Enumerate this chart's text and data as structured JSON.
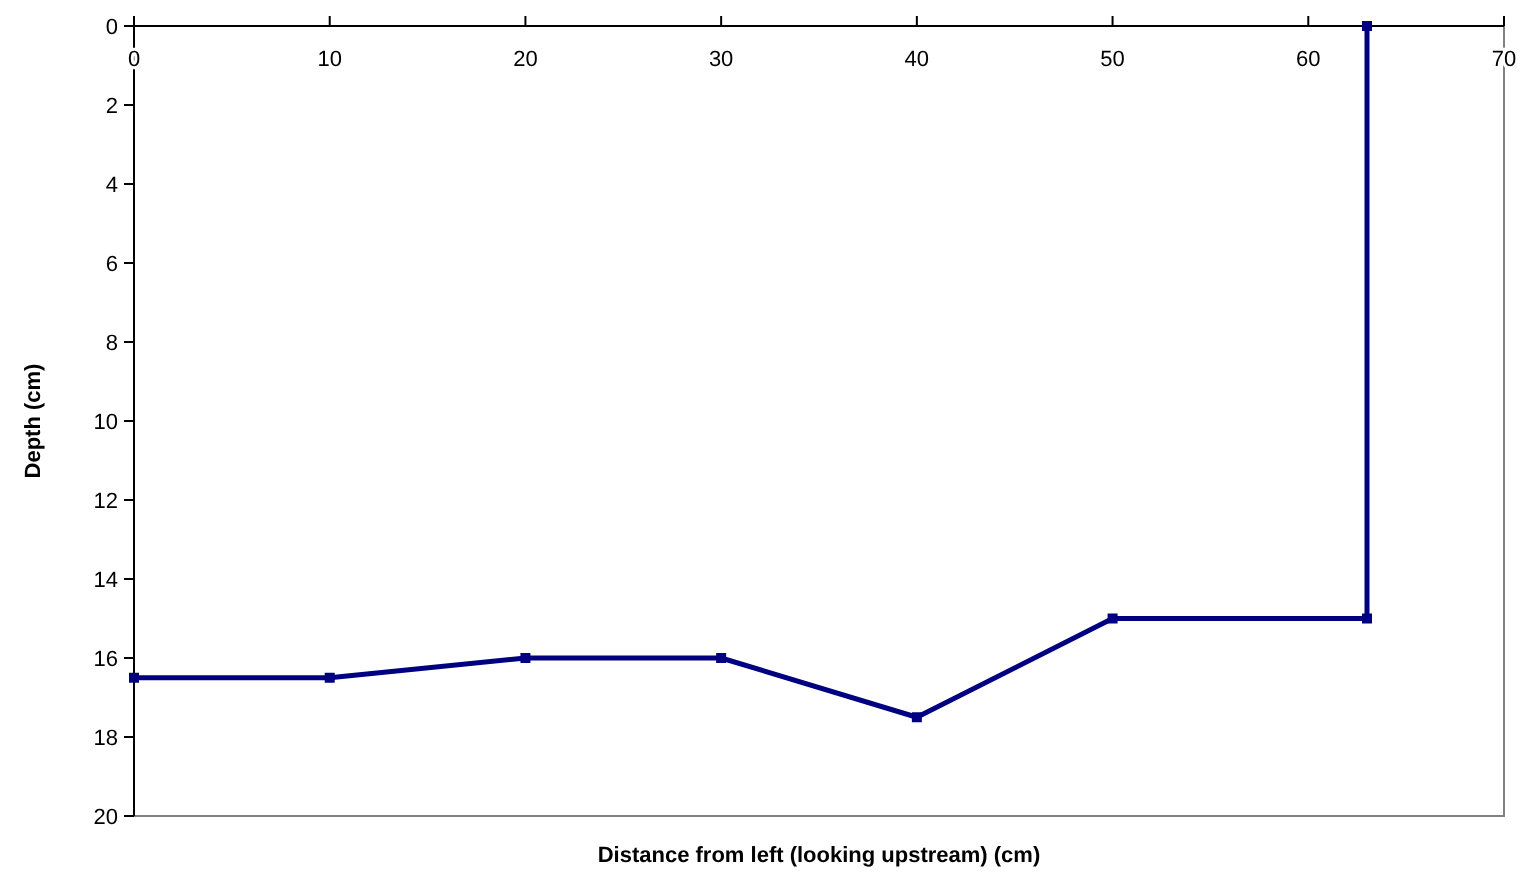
{
  "chart_data": {
    "type": "line",
    "xlabel": "Distance from left (looking upstream) (cm)",
    "ylabel": "Depth (cm)",
    "x": [
      0,
      10,
      20,
      30,
      40,
      50,
      63,
      63
    ],
    "series": [
      {
        "color": "#000080",
        "values": [
          16.5,
          16.5,
          16,
          16,
          17.5,
          15,
          15,
          0
        ]
      }
    ],
    "xlim": [
      0,
      70
    ],
    "xticks": [
      0,
      10,
      20,
      30,
      40,
      50,
      60,
      70
    ],
    "ylim": [
      20,
      0
    ],
    "yticks": [
      0,
      2,
      4,
      6,
      8,
      10,
      12,
      14,
      16,
      18,
      20
    ],
    "marker": "square",
    "line_style": "solid"
  }
}
